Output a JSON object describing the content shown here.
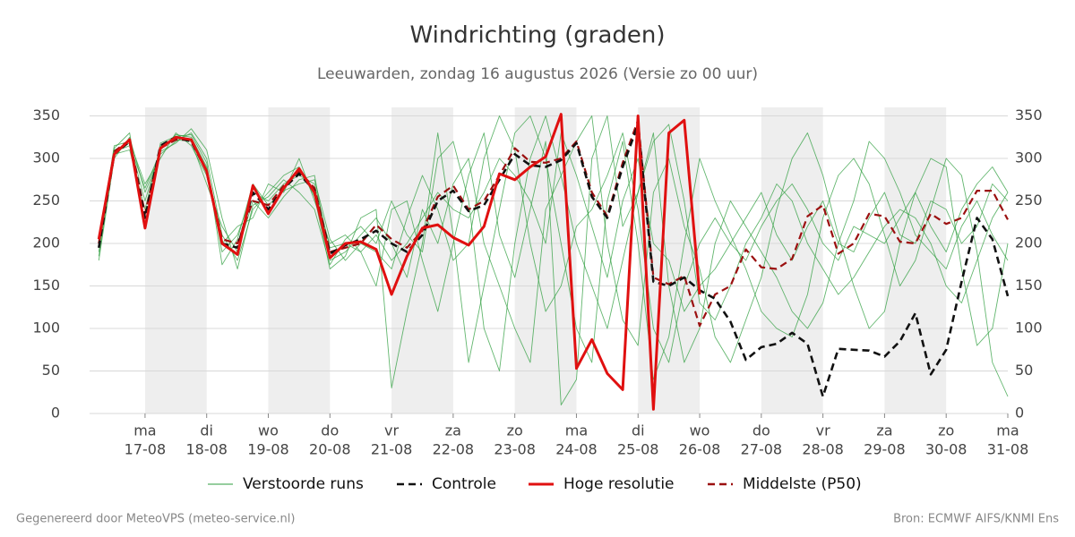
{
  "chart_data": {
    "type": "line",
    "title": "Windrichting (graden)",
    "subtitle": "Leeuwarden, zondag 16 augustus 2026 (Versie zo 00 uur)",
    "x": [
      16.25,
      16.5,
      16.75,
      17,
      17.25,
      17.5,
      17.75,
      18,
      18.25,
      18.5,
      18.75,
      19,
      19.25,
      19.5,
      19.75,
      20,
      20.25,
      20.5,
      20.75,
      21,
      21.25,
      21.5,
      21.75,
      22,
      22.25,
      22.5,
      22.75,
      23,
      23.25,
      23.5,
      23.75,
      24,
      24.25,
      24.5,
      24.75,
      25,
      25.25,
      25.5,
      25.75,
      26,
      26.25,
      26.5,
      26.75,
      27,
      27.25,
      27.5,
      27.75,
      28,
      28.25,
      28.5,
      28.75,
      29,
      29.25,
      29.5,
      29.75,
      30,
      30.25,
      30.5,
      30.75,
      31
    ],
    "xlim": [
      16.1,
      31
    ],
    "xticks": [
      {
        "value": 17,
        "label": [
          "ma",
          "17-08"
        ]
      },
      {
        "value": 18,
        "label": [
          "di",
          "18-08"
        ]
      },
      {
        "value": 19,
        "label": [
          "wo",
          "19-08"
        ]
      },
      {
        "value": 20,
        "label": [
          "do",
          "20-08"
        ]
      },
      {
        "value": 21,
        "label": [
          "vr",
          "21-08"
        ]
      },
      {
        "value": 22,
        "label": [
          "za",
          "22-08"
        ]
      },
      {
        "value": 23,
        "label": [
          "zo",
          "23-08"
        ]
      },
      {
        "value": 24,
        "label": [
          "ma",
          "24-08"
        ]
      },
      {
        "value": 25,
        "label": [
          "di",
          "25-08"
        ]
      },
      {
        "value": 26,
        "label": [
          "wo",
          "26-08"
        ]
      },
      {
        "value": 27,
        "label": [
          "do",
          "27-08"
        ]
      },
      {
        "value": 28,
        "label": [
          "vr",
          "28-08"
        ]
      },
      {
        "value": 29,
        "label": [
          "za",
          "29-08"
        ]
      },
      {
        "value": 30,
        "label": [
          "zo",
          "30-08"
        ]
      },
      {
        "value": 31,
        "label": [
          "ma",
          "31-08"
        ]
      }
    ],
    "ylim": [
      0,
      360
    ],
    "yticks": [
      0,
      50,
      100,
      150,
      200,
      250,
      300,
      350
    ],
    "grid": true,
    "legend": "bottom",
    "series": [
      {
        "name": "Verstoorde runs",
        "color": "#2e9e3e",
        "members": [
          [
            190,
            310,
            318,
            250,
            310,
            328,
            325,
            290,
            190,
            210,
            260,
            250,
            270,
            280,
            270,
            195,
            200,
            190,
            210,
            180,
            200,
            230,
            260,
            240,
            230,
            260,
            300,
            280,
            250,
            200,
            330,
            280,
            220,
            160,
            250,
            300,
            200,
            180,
            120,
            150,
            170,
            200,
            230,
            260,
            210,
            180,
            220,
            250,
            200,
            190,
            230,
            260,
            210,
            200,
            250,
            240,
            200,
            220,
            270,
            250
          ],
          [
            180,
            300,
            325,
            260,
            305,
            320,
            330,
            300,
            210,
            180,
            240,
            260,
            280,
            290,
            255,
            170,
            185,
            230,
            240,
            30,
            120,
            200,
            330,
            210,
            60,
            150,
            240,
            330,
            350,
            300,
            200,
            100,
            60,
            250,
            320,
            200,
            40,
            90,
            200,
            300,
            250,
            210,
            170,
            120,
            100,
            90,
            140,
            230,
            280,
            300,
            270,
            210,
            150,
            180,
            240,
            300,
            280,
            190,
            60,
            20
          ],
          [
            200,
            315,
            320,
            270,
            300,
            330,
            315,
            280,
            200,
            220,
            230,
            270,
            260,
            300,
            250,
            200,
            210,
            190,
            150,
            240,
            250,
            180,
            120,
            200,
            280,
            330,
            210,
            160,
            240,
            320,
            10,
            40,
            300,
            350,
            220,
            260,
            330,
            150,
            60,
            100,
            200,
            250,
            220,
            190,
            160,
            120,
            100,
            130,
            200,
            250,
            320,
            300,
            260,
            210,
            190,
            170,
            220,
            250,
            210,
            180
          ],
          [
            185,
            305,
            310,
            240,
            315,
            322,
            320,
            270,
            220,
            190,
            250,
            230,
            255,
            275,
            280,
            180,
            190,
            210,
            230,
            200,
            160,
            240,
            200,
            270,
            300,
            200,
            150,
            100,
            60,
            240,
            280,
            320,
            350,
            200,
            110,
            80,
            260,
            300,
            220,
            170,
            90,
            60,
            110,
            160,
            240,
            300,
            330,
            280,
            210,
            150,
            100,
            120,
            200,
            260,
            300,
            290,
            170,
            80,
            100,
            200
          ],
          [
            195,
            312,
            330,
            220,
            318,
            326,
            328,
            295,
            175,
            205,
            270,
            245,
            262,
            270,
            275,
            205,
            180,
            200,
            190,
            170,
            230,
            280,
            240,
            180,
            200,
            300,
            350,
            310,
            200,
            120,
            150,
            220,
            240,
            280,
            330,
            240,
            100,
            60,
            150,
            200,
            230,
            200,
            180,
            220,
            250,
            270,
            240,
            200,
            180,
            220,
            210,
            200,
            230,
            260,
            220,
            190,
            240,
            270,
            290,
            260
          ],
          [
            205,
            308,
            315,
            265,
            308,
            318,
            335,
            310,
            230,
            170,
            245,
            255,
            275,
            260,
            240,
            175,
            205,
            220,
            200,
            250,
            210,
            190,
            300,
            320,
            250,
            100,
            50,
            200,
            300,
            350,
            280,
            200,
            150,
            100,
            180,
            260,
            320,
            340,
            250,
            130,
            110,
            150,
            200,
            230,
            270,
            250,
            200,
            170,
            140,
            160,
            190,
            220,
            240,
            230,
            200,
            150,
            130,
            180,
            230,
            260
          ]
        ]
      },
      {
        "name": "Controle",
        "color": "#111111",
        "dash": true,
        "values": [
          195,
          305,
          320,
          230,
          315,
          325,
          320,
          285,
          200,
          195,
          260,
          240,
          265,
          282,
          262,
          188,
          198,
          205,
          215,
          200,
          190,
          210,
          250,
          262,
          238,
          245,
          275,
          305,
          292,
          290,
          298,
          318,
          255,
          230,
          290,
          340,
          155,
          150,
          160,
          145,
          135,
          108,
          63,
          78,
          82,
          95,
          82,
          20,
          76,
          75,
          74,
          67,
          85,
          118,
          46,
          75,
          155,
          230,
          205,
          138
        ]
      },
      {
        "name": "Hoge resolutie",
        "color": "#e01010",
        "values": [
          205,
          305,
          322,
          218,
          312,
          325,
          322,
          285,
          200,
          187,
          268,
          235,
          265,
          288,
          260,
          183,
          200,
          202,
          193,
          140,
          185,
          218,
          222,
          207,
          198,
          220,
          282,
          275,
          290,
          302,
          352,
          53,
          87,
          47,
          28,
          350,
          5,
          330,
          345,
          140,
          null,
          null,
          null,
          null,
          null,
          null,
          null,
          null,
          null,
          null,
          null,
          null,
          null,
          null,
          null,
          null,
          null,
          null,
          null,
          null
        ]
      },
      {
        "name": "Middelste (P50)",
        "color": "#9b1010",
        "dash": true,
        "values": [
          200,
          308,
          322,
          235,
          312,
          322,
          322,
          285,
          205,
          200,
          250,
          245,
          268,
          285,
          265,
          190,
          195,
          200,
          222,
          205,
          195,
          215,
          255,
          268,
          240,
          250,
          280,
          312,
          296,
          295,
          300,
          320,
          260,
          232,
          295,
          345,
          160,
          152,
          162,
          103,
          140,
          150,
          193,
          172,
          170,
          182,
          232,
          245,
          188,
          200,
          235,
          232,
          202,
          200,
          235,
          223,
          230,
          262,
          262,
          228
        ]
      }
    ],
    "footer_left": "Gegenereerd door MeteoVPS (meteo-service.nl)",
    "footer_right": "Bron: ECMWF AIFS/KNMI Ens"
  }
}
